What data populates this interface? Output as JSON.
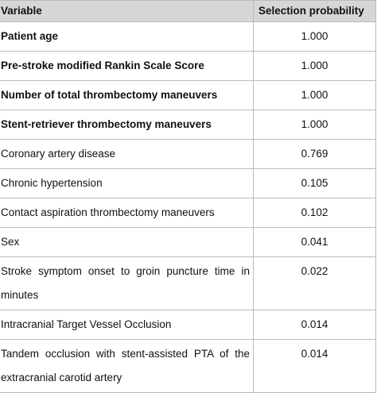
{
  "table": {
    "header": [
      "Variable",
      "Selection probability"
    ],
    "rows": [
      [
        "Patient age",
        "1.000"
      ],
      [
        "Pre-stroke modified Rankin Scale Score",
        "1.000"
      ],
      [
        "Number of total thrombectomy maneuvers",
        "1.000"
      ],
      [
        "Stent-retriever thrombectomy maneuvers",
        "1.000"
      ],
      [
        "Coronary artery disease",
        "0.769"
      ],
      [
        "Chronic hypertension",
        "0.105"
      ],
      [
        "Contact aspiration thrombectomy maneuvers",
        "0.102"
      ],
      [
        "Sex",
        "0.041"
      ],
      [
        "Stroke symptom onset to groin puncture time in minutes",
        "0.022"
      ],
      [
        "Intracranial Target Vessel Occlusion",
        "0.014"
      ],
      [
        "Tandem occlusion with stent-assisted PTA of the extracranial carotid artery",
        "0.014"
      ]
    ]
  }
}
